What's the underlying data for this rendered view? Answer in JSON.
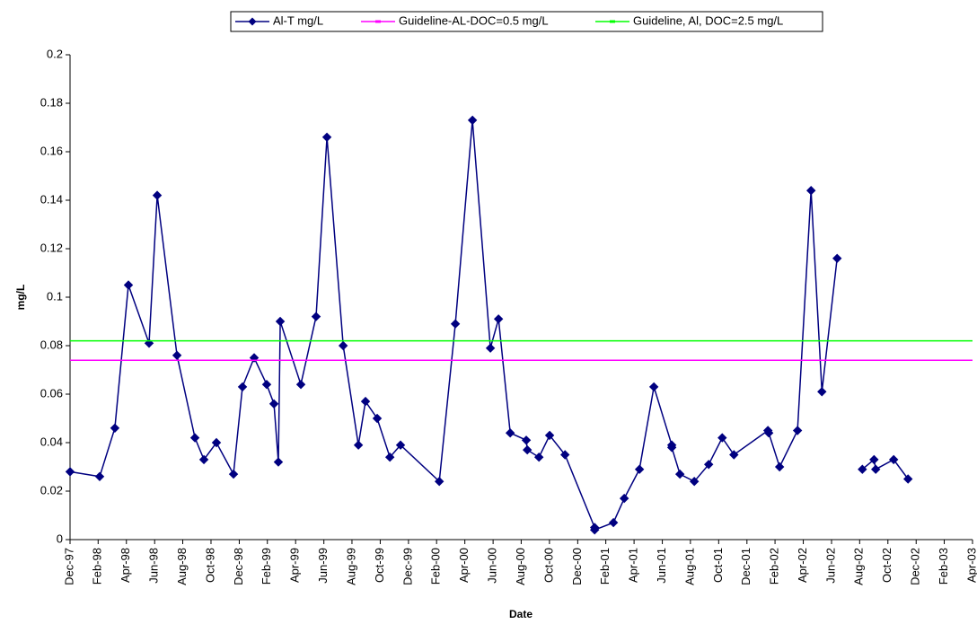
{
  "chart_data": {
    "type": "line",
    "x_label": "Date",
    "y_label": "mg/L",
    "xlim": [
      1997.917,
      2003.25
    ],
    "xticks": [
      {
        "value": 1997.917,
        "label": "Dec-97"
      },
      {
        "value": 1998.083,
        "label": "Feb-98"
      },
      {
        "value": 1998.25,
        "label": "Apr-98"
      },
      {
        "value": 1998.417,
        "label": "Jun-98"
      },
      {
        "value": 1998.583,
        "label": "Aug-98"
      },
      {
        "value": 1998.75,
        "label": "Oct-98"
      },
      {
        "value": 1998.917,
        "label": "Dec-98"
      },
      {
        "value": 1999.083,
        "label": "Feb-99"
      },
      {
        "value": 1999.25,
        "label": "Apr-99"
      },
      {
        "value": 1999.417,
        "label": "Jun-99"
      },
      {
        "value": 1999.583,
        "label": "Aug-99"
      },
      {
        "value": 1999.75,
        "label": "Oct-99"
      },
      {
        "value": 1999.917,
        "label": "Dec-99"
      },
      {
        "value": 2000.083,
        "label": "Feb-00"
      },
      {
        "value": 2000.25,
        "label": "Apr-00"
      },
      {
        "value": 2000.417,
        "label": "Jun-00"
      },
      {
        "value": 2000.583,
        "label": "Aug-00"
      },
      {
        "value": 2000.75,
        "label": "Oct-00"
      },
      {
        "value": 2000.917,
        "label": "Dec-00"
      },
      {
        "value": 2001.083,
        "label": "Feb-01"
      },
      {
        "value": 2001.25,
        "label": "Apr-01"
      },
      {
        "value": 2001.417,
        "label": "Jun-01"
      },
      {
        "value": 2001.583,
        "label": "Aug-01"
      },
      {
        "value": 2001.75,
        "label": "Oct-01"
      },
      {
        "value": 2001.917,
        "label": "Dec-01"
      },
      {
        "value": 2002.083,
        "label": "Feb-02"
      },
      {
        "value": 2002.25,
        "label": "Apr-02"
      },
      {
        "value": 2002.417,
        "label": "Jun-02"
      },
      {
        "value": 2002.583,
        "label": "Aug-02"
      },
      {
        "value": 2002.75,
        "label": "Oct-02"
      },
      {
        "value": 2002.917,
        "label": "Dec-02"
      },
      {
        "value": 2003.083,
        "label": "Feb-03"
      },
      {
        "value": 2003.25,
        "label": "Apr-03"
      }
    ],
    "ylim": [
      0,
      0.2
    ],
    "yticks": [
      0,
      0.02,
      0.04,
      0.06,
      0.08,
      0.1,
      0.12,
      0.14,
      0.16,
      0.18,
      0.2
    ],
    "legend": "top",
    "series": [
      {
        "name": "Al-T mg/L",
        "color": "#000080",
        "marker": "diamond",
        "x": [
          1997.917,
          1998.092,
          1998.182,
          1998.262,
          1998.384,
          1998.432,
          1998.549,
          1998.655,
          1998.708,
          1998.782,
          1998.883,
          1998.936,
          1999.005,
          1999.079,
          1999.122,
          1999.148,
          1999.159,
          1999.281,
          1999.371,
          1999.435,
          1999.531,
          1999.621,
          1999.663,
          1999.732,
          1999.807,
          1999.87,
          2000.099,
          2000.194,
          2000.295,
          2000.401,
          2000.449,
          2000.518,
          2000.613,
          2000.619,
          2000.688,
          2000.751,
          2000.842,
          2001.017,
          2001.017,
          2001.128,
          2001.192,
          2001.282,
          2001.367,
          2001.473,
          2001.473,
          2001.521,
          2001.606,
          2001.691,
          2001.771,
          2001.84,
          2002.041,
          2002.046,
          2002.11,
          2002.216,
          2002.296,
          2002.36,
          2002.45,
          null,
          2002.599,
          2002.668,
          2002.678,
          2002.784,
          2002.869
        ],
        "values": [
          0.028,
          0.026,
          0.046,
          0.105,
          0.081,
          0.142,
          0.076,
          0.042,
          0.033,
          0.04,
          0.027,
          0.063,
          0.075,
          0.064,
          0.056,
          0.032,
          0.09,
          0.064,
          0.092,
          0.166,
          0.08,
          0.039,
          0.057,
          0.05,
          0.034,
          0.039,
          0.024,
          0.089,
          0.173,
          0.079,
          0.091,
          0.044,
          0.041,
          0.037,
          0.034,
          0.043,
          0.035,
          0.005,
          0.004,
          0.007,
          0.017,
          0.029,
          0.063,
          0.039,
          0.038,
          0.027,
          0.024,
          0.031,
          0.042,
          0.035,
          0.045,
          0.044,
          0.03,
          0.045,
          0.144,
          0.061,
          0.116,
          null,
          0.029,
          0.033,
          0.029,
          0.033,
          0.025
        ]
      },
      {
        "name": "Guideline-AL-DOC=0.5 mg/L",
        "color": "#ff00ff",
        "marker": "dash",
        "x": [
          1997.917,
          2003.25
        ],
        "values": [
          0.074,
          0.074
        ]
      },
      {
        "name": "Guideline, Al, DOC=2.5 mg/L",
        "color": "#00ff00",
        "marker": "dash",
        "x": [
          1997.917,
          2003.25
        ],
        "values": [
          0.082,
          0.082
        ]
      }
    ]
  }
}
